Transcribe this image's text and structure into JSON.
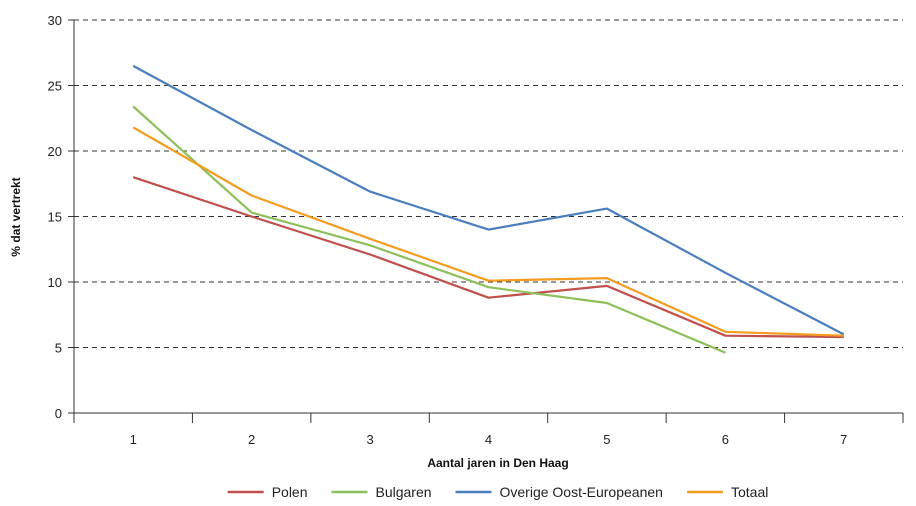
{
  "chart_data": {
    "type": "line",
    "title": "",
    "xlabel": "Aantal jaren in Den Haag",
    "ylabel": "% dat vertrekt",
    "categories": [
      "1",
      "2",
      "3",
      "4",
      "5",
      "6",
      "7"
    ],
    "ylim": [
      0,
      30
    ],
    "yticks": [
      0,
      5,
      10,
      15,
      20,
      25,
      30
    ],
    "grid": "horizontal dashed",
    "legend_position": "bottom",
    "series": [
      {
        "name": "Polen",
        "color": "#c0504d",
        "values": [
          18.0,
          15.0,
          12.1,
          8.8,
          9.7,
          5.9,
          5.8
        ]
      },
      {
        "name": "Bulgaren",
        "color": "#8dbf5a",
        "values": [
          23.4,
          15.3,
          12.8,
          9.6,
          8.4,
          4.6,
          null
        ]
      },
      {
        "name": "Overige Oost-Europeanen",
        "color": "#4a7ebf",
        "values": [
          26.5,
          21.6,
          16.9,
          14.0,
          15.6,
          10.7,
          6.0
        ]
      },
      {
        "name": "Totaal",
        "color": "#f39c1f",
        "values": [
          21.8,
          16.6,
          13.3,
          10.1,
          10.3,
          6.2,
          5.9
        ]
      }
    ]
  }
}
